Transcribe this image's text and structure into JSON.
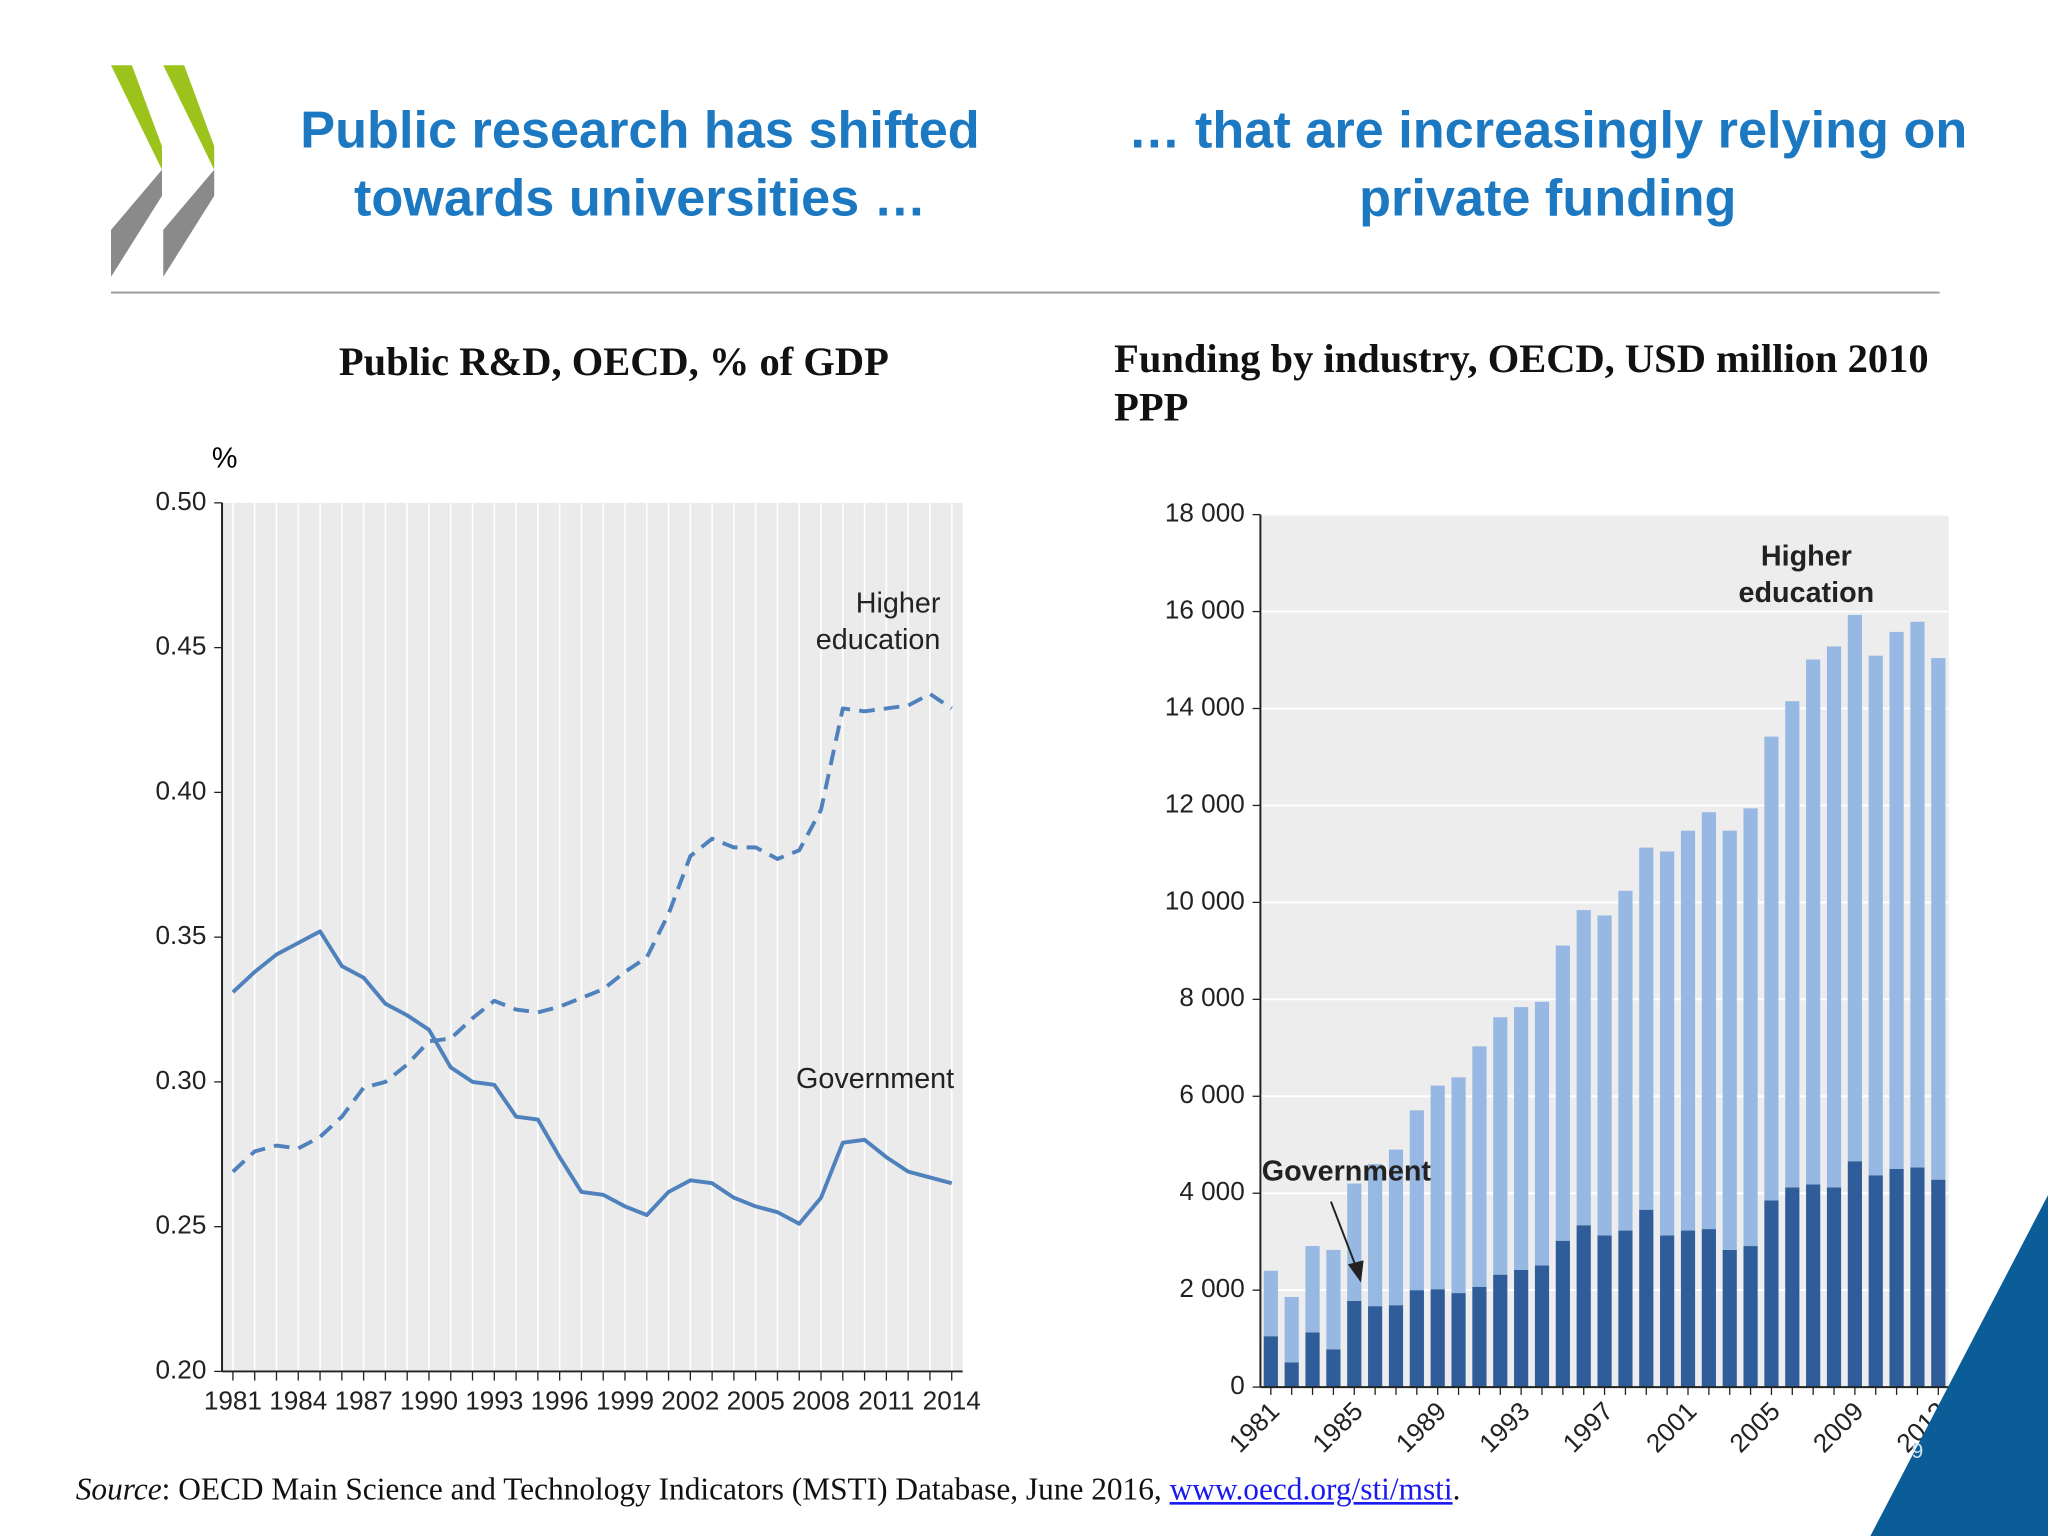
{
  "slide": {
    "title_left": "Public research has shifted towards universities …",
    "title_right": "… that are increasingly relying on private funding",
    "source": {
      "label": "Source",
      "text": ": OECD Main Science and Technology Indicators (MSTI) Database, June 2016, ",
      "link": "www.oecd.org/sti/msti",
      "end": "."
    },
    "page_number": "9"
  },
  "chart_data": [
    {
      "type": "line",
      "title": "Public R&D, OECD, % of GDP",
      "ylabel": "%",
      "x": [
        1981,
        1982,
        1983,
        1984,
        1985,
        1986,
        1987,
        1988,
        1989,
        1990,
        1991,
        1992,
        1993,
        1994,
        1995,
        1996,
        1997,
        1998,
        1999,
        2000,
        2001,
        2002,
        2003,
        2004,
        2005,
        2006,
        2007,
        2008,
        2009,
        2010,
        2011,
        2012,
        2013,
        2014
      ],
      "series": [
        {
          "name": "Higher education",
          "color": "#4f81bd",
          "line_style": "dashed",
          "values": [
            0.269,
            0.276,
            0.278,
            0.277,
            0.281,
            0.288,
            0.298,
            0.3,
            0.306,
            0.314,
            0.315,
            0.322,
            0.328,
            0.325,
            0.324,
            0.326,
            0.329,
            0.332,
            0.338,
            0.343,
            0.358,
            0.378,
            0.384,
            0.381,
            0.381,
            0.377,
            0.38,
            0.394,
            0.429,
            0.428,
            0.429,
            0.43,
            0.434,
            0.429
          ]
        },
        {
          "name": "Government",
          "color": "#4f81bd",
          "line_style": "solid",
          "values": [
            0.331,
            0.338,
            0.344,
            0.348,
            0.352,
            0.34,
            0.336,
            0.327,
            0.323,
            0.318,
            0.305,
            0.3,
            0.299,
            0.288,
            0.287,
            0.274,
            0.262,
            0.261,
            0.257,
            0.254,
            0.262,
            0.266,
            0.265,
            0.26,
            0.257,
            0.255,
            0.251,
            0.26,
            0.279,
            0.28,
            0.274,
            0.269,
            0.267,
            0.265
          ]
        }
      ],
      "xlim": [
        1980.5,
        2014.5
      ],
      "xticks": [
        1981,
        1984,
        1987,
        1990,
        1993,
        1996,
        1999,
        2002,
        2005,
        2008,
        2011,
        2014
      ],
      "ylim": [
        0.2,
        0.5
      ],
      "yticks": [
        {
          "value": 0.2,
          "label": "0.20"
        },
        0.25,
        {
          "value": 0.3,
          "label": "0.30"
        },
        0.35,
        {
          "value": 0.4,
          "label": "0.40"
        },
        0.45,
        {
          "value": 0.5,
          "label": "0.50"
        }
      ],
      "grid": "x"
    },
    {
      "type": "bar",
      "stacked": true,
      "title": "Funding by industry, OECD, USD million 2010 PPP",
      "categories": [
        "1981",
        null,
        null,
        null,
        "1985",
        null,
        null,
        null,
        "1989",
        null,
        null,
        null,
        "1993",
        null,
        null,
        null,
        "1997",
        null,
        null,
        null,
        "2001",
        null,
        null,
        null,
        "2005",
        null,
        null,
        null,
        "2009",
        null,
        null,
        null,
        "2013"
      ],
      "series": [
        {
          "name": "Government",
          "color": "#2e5d99",
          "values": [
            1050,
            510,
            1130,
            780,
            1780,
            1670,
            1690,
            2000,
            2020,
            1940,
            2070,
            2320,
            2420,
            2510,
            3020,
            3340,
            3130,
            3230,
            3660,
            3130,
            3230,
            3260,
            2830,
            2910,
            3850,
            4120,
            4180,
            4120,
            4660,
            4370,
            4500,
            4530,
            4280
          ]
        },
        {
          "name": "Higher education",
          "color": "#96b8e2",
          "values": [
            1350,
            1350,
            1780,
            2050,
            2420,
            2930,
            3210,
            3710,
            4200,
            4450,
            4960,
            5310,
            5420,
            5440,
            6090,
            6500,
            6600,
            7010,
            7470,
            7920,
            8250,
            8600,
            8650,
            9030,
            9570,
            10030,
            10830,
            11160,
            11270,
            10720,
            11080,
            11260,
            10760
          ]
        }
      ],
      "ylim": [
        0,
        18000
      ],
      "yticks": [
        0,
        {
          "value": 2000,
          "label": "2 000"
        },
        {
          "value": 4000,
          "label": "4 000"
        },
        {
          "value": 6000,
          "label": "6 000"
        },
        {
          "value": 8000,
          "label": "8 000"
        },
        {
          "value": 10000,
          "label": "10 000"
        },
        {
          "value": 12000,
          "label": "12 000"
        },
        {
          "value": 14000,
          "label": "14 000"
        },
        {
          "value": 16000,
          "label": "16 000"
        },
        {
          "value": 18000,
          "label": "18 000"
        }
      ],
      "grid": "y"
    }
  ]
}
